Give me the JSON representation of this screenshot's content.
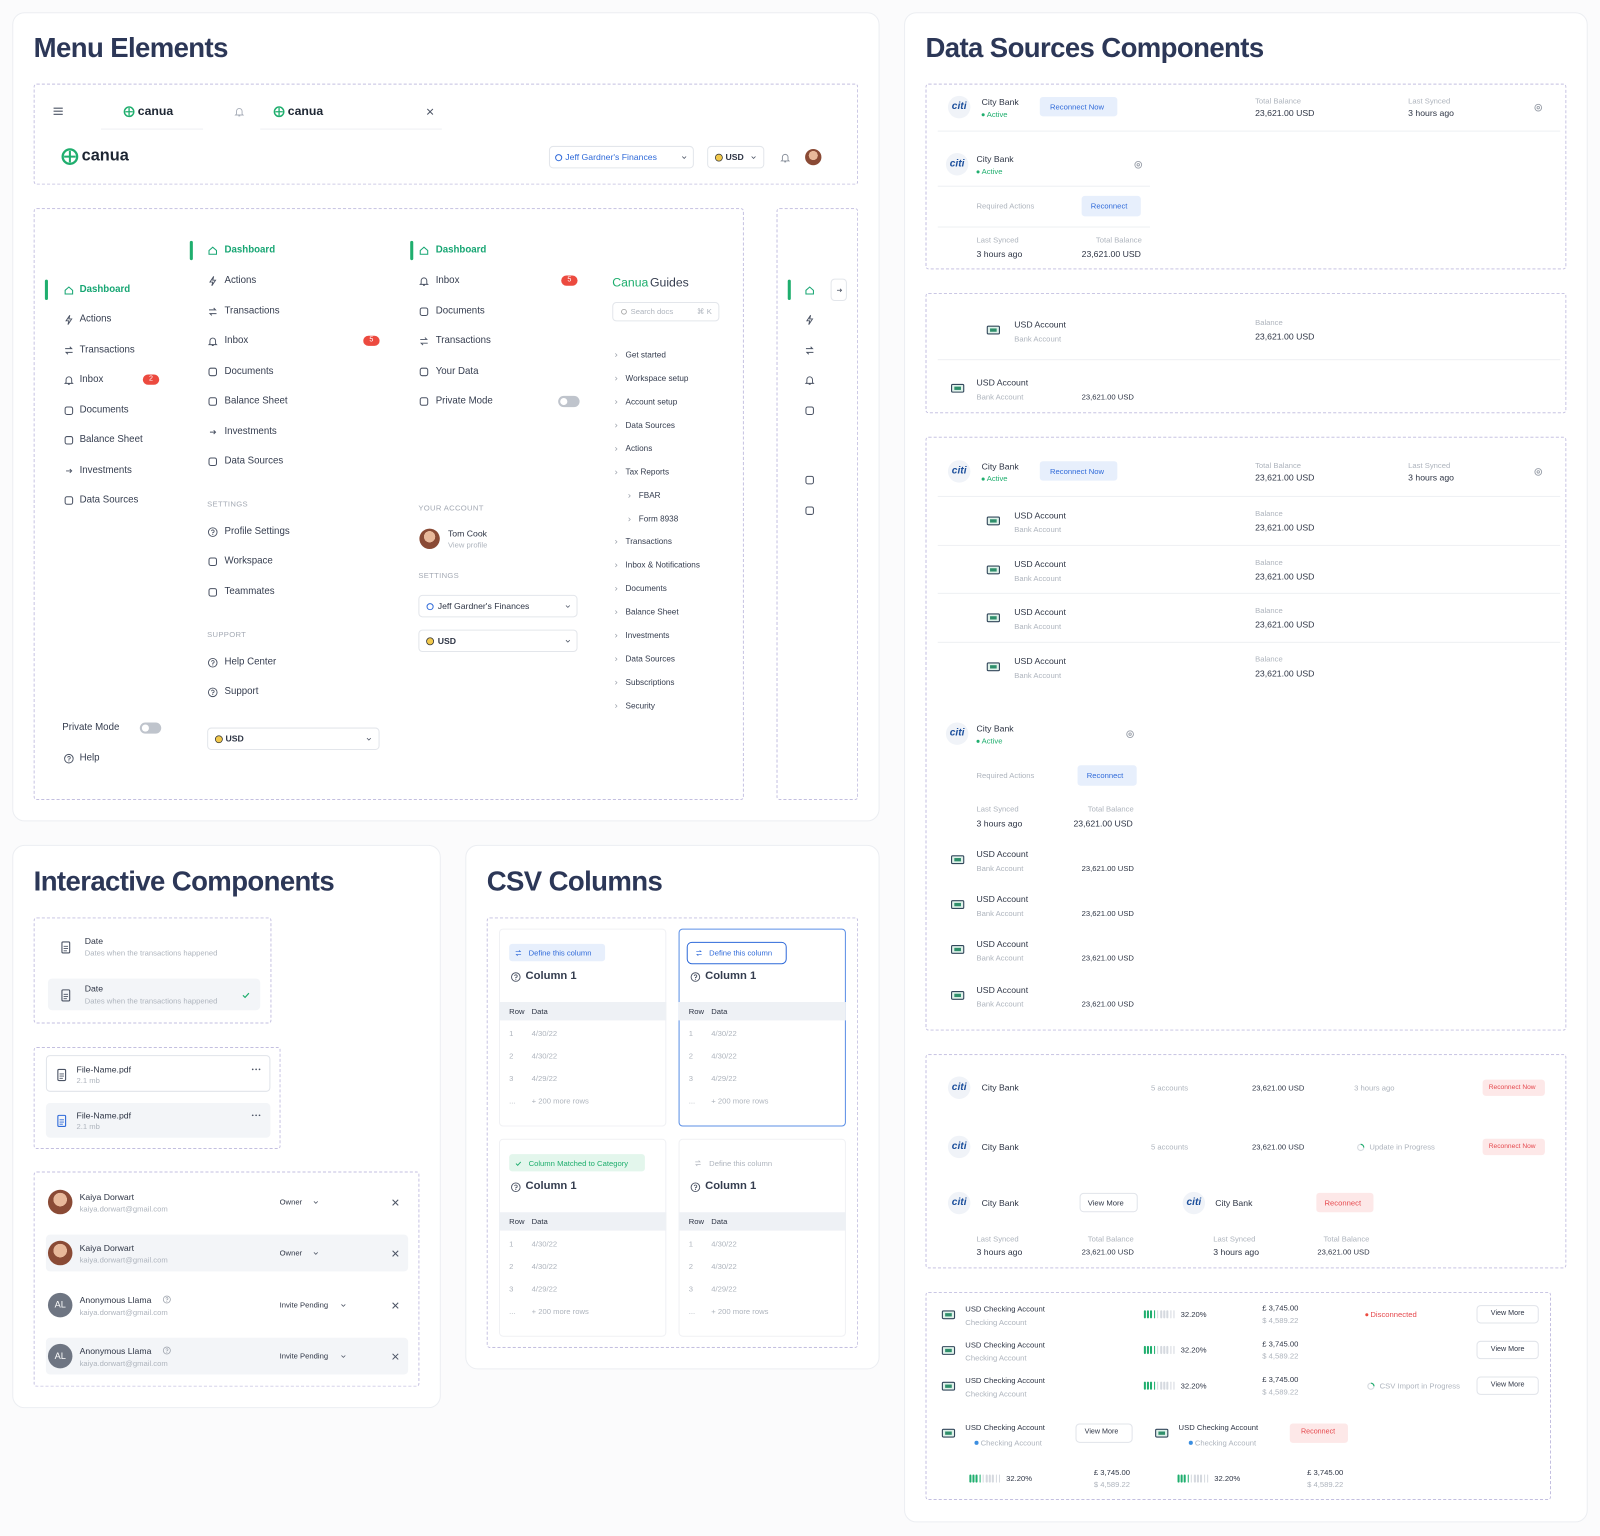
{
  "menu": {
    "title": "Menu Elements",
    "brand": "canua",
    "finances": "Jeff Gardner's Finances",
    "currency": "USD",
    "nav_a": [
      "Dashboard",
      "Actions",
      "Transactions",
      "Inbox",
      "Documents",
      "Balance Sheet",
      "Investments",
      "Data Sources"
    ],
    "badge_a": "2",
    "private_mode": "Private Mode",
    "help": "Help",
    "badge_b": "5",
    "settings_label": "SETTINGS",
    "settings": [
      "Profile Settings",
      "Workspace",
      "Teammates"
    ],
    "support_label": "SUPPORT",
    "support": [
      "Help Center",
      "Support"
    ],
    "nav_c": [
      "Dashboard",
      "Inbox",
      "Documents",
      "Transactions",
      "Your Data",
      "Private Mode"
    ],
    "badge_c": "5",
    "account_label": "YOUR ACCOUNT",
    "user_name": "Tom Cook",
    "user_link": "View profile",
    "guides_brand": "Canua",
    "guides_title": "Guides",
    "search_placeholder": "Search docs",
    "search_shortcut": "⌘ K",
    "guides": [
      "Get started",
      "Workspace setup",
      "Account setup",
      "Data Sources",
      "Actions",
      "Tax Reports",
      "FBAR",
      "Form 8938",
      "Transactions",
      "Inbox & Notifications",
      "Documents",
      "Balance Sheet",
      "Investments",
      "Data Sources",
      "Subscriptions",
      "Security"
    ]
  },
  "interactive": {
    "title": "Interactive Components",
    "field_name": "Date",
    "field_desc": "Dates when the transactions happened",
    "file_name": "File-Name.pdf",
    "file_size": "2.1 mb",
    "members": [
      {
        "name": "Kaiya Dorwart",
        "email": "kaiya.dorwart@gmail.com",
        "role": "Owner"
      },
      {
        "name": "Kaiya Dorwart",
        "email": "kaiya.dorwart@gmail.com",
        "role": "Owner"
      },
      {
        "initials": "AL",
        "name": "Anonymous Llama",
        "email": "kaiya.dorwart@gmail.com",
        "role": "Invite Pending"
      },
      {
        "initials": "AL",
        "name": "Anonymous Llama",
        "email": "kaiya.dorwart@gmail.com",
        "role": "Invite Pending"
      }
    ]
  },
  "csv": {
    "title": "CSV Columns",
    "define": "Define this column",
    "matched": "Column Matched to Category",
    "column": "Column 1",
    "row_header": "Row",
    "data_header": "Data",
    "rows": [
      [
        "1",
        "4/30/22"
      ],
      [
        "2",
        "4/30/22"
      ],
      [
        "3",
        "4/29/22"
      ]
    ],
    "ellipsis": "...",
    "more_rows": "+ 200 more rows"
  },
  "data_sources": {
    "title": "Data Sources Components",
    "logo": "citi",
    "bank": "City Bank",
    "status": "Active",
    "reconnect_now": "Reconnect Now",
    "reconnect": "Reconnect",
    "total_balance": "Total Balance",
    "balance": "Balance",
    "amount": "23,621.00 USD",
    "last_synced": "Last Synced",
    "synced_ago": "3 hours ago",
    "required_actions": "Required Actions",
    "account": "USD Account",
    "account_type": "Bank Account",
    "accounts_count": "5 accounts",
    "updating": "Update in Progress",
    "view_more": "View More",
    "checking": "USD Checking Account",
    "checking_type": "Checking Account",
    "percent": "32.20%",
    "gbp": "£ 3,745.00",
    "usd": "$ 4,589.22",
    "disconnected": "Disconnected",
    "csv_import": "CSV Import in Progress"
  }
}
